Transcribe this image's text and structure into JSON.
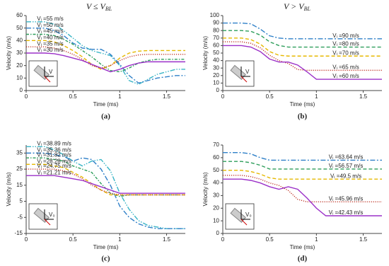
{
  "headers": [
    {
      "text": "V ≤ V",
      "sub": "BL"
    },
    {
      "text": "V > V",
      "sub": "BL"
    }
  ],
  "chart_data": [
    {
      "type": "line",
      "caption": "(a)",
      "x_label": "Time (ms)",
      "y_label": "Velocity (m/s)",
      "inset_label": "V",
      "x": [
        0,
        0.1,
        0.2,
        0.3,
        0.4,
        0.5,
        0.6,
        0.7,
        0.8,
        0.9,
        1,
        1.1,
        1.2,
        1.3,
        1.4,
        1.5,
        1.6,
        1.7
      ],
      "xlim": [
        0,
        1.7
      ],
      "xticks": [
        0,
        0.5,
        1,
        1.5
      ],
      "ylim": [
        0,
        60
      ],
      "yticks": [
        0,
        10,
        20,
        30,
        40,
        50,
        60
      ],
      "series": [
        {
          "name": "Vᵢ =55 m/s",
          "color": "#3ab5c6",
          "style": "dashdotdot",
          "values": [
            55,
            55,
            55,
            53,
            48,
            42,
            36,
            32,
            30,
            28,
            20,
            8,
            5,
            9,
            13,
            15,
            17,
            17
          ]
        },
        {
          "name": "Vᵢ =50 m/s",
          "color": "#2f80c8",
          "style": "dashdot",
          "values": [
            50,
            50,
            50,
            48,
            44,
            38,
            34,
            33,
            33,
            29,
            21,
            12,
            6,
            8,
            10,
            11,
            12,
            12
          ]
        },
        {
          "name": "Vᵢ =45 m/s",
          "color": "#2e9e5b",
          "style": "dashdot2",
          "values": [
            45,
            45,
            45,
            44,
            41,
            37,
            32,
            27,
            21,
            16,
            15,
            18,
            22,
            24,
            25,
            25,
            25,
            25
          ]
        },
        {
          "name": "Vᵢ =40 m/s",
          "color": "#e6b800",
          "style": "dashed",
          "values": [
            40,
            40,
            40,
            39,
            36,
            32,
            27,
            21,
            17,
            20,
            26,
            30,
            31.5,
            32,
            32,
            32,
            32,
            32
          ]
        },
        {
          "name": "Vᵢ =35 m/s",
          "color": "#c0392b",
          "style": "dotted",
          "values": [
            35,
            35,
            35,
            34,
            32,
            29,
            25,
            20,
            18,
            20,
            24,
            27,
            28.5,
            29,
            29,
            29,
            29,
            29
          ]
        },
        {
          "name": "Vᵢ =30 m/s",
          "color": "#9b30c8",
          "style": "solid",
          "values": [
            30,
            30,
            30,
            29.5,
            28,
            26,
            24,
            21,
            18,
            15,
            17,
            20,
            22,
            23,
            23,
            23,
            23,
            23
          ]
        }
      ]
    },
    {
      "type": "line",
      "caption": "(b)",
      "x_label": "Time (ms)",
      "y_label": "Velocity (m/s)",
      "inset_label": "V",
      "x": [
        0,
        0.1,
        0.2,
        0.3,
        0.4,
        0.5,
        0.6,
        0.7,
        0.8,
        0.9,
        1,
        1.1,
        1.2,
        1.3,
        1.4,
        1.5,
        1.6,
        1.7
      ],
      "xlim": [
        0,
        1.7
      ],
      "xticks": [
        0,
        0.5,
        1,
        1.5
      ],
      "ylim": [
        0,
        100
      ],
      "yticks": [
        0,
        10,
        20,
        30,
        40,
        50,
        60,
        70,
        80,
        90,
        100
      ],
      "series": [
        {
          "name": "Vᵢ =90 m/s",
          "color": "#2f80c8",
          "style": "dashdot",
          "values": [
            90,
            90,
            90,
            89,
            82,
            73,
            70,
            69,
            69,
            69,
            69,
            69,
            69,
            69,
            69,
            69,
            69,
            69
          ]
        },
        {
          "name": "Vᵢ =80 m/s",
          "color": "#2e9e5b",
          "style": "dashed",
          "values": [
            80,
            80,
            80,
            79,
            74,
            65,
            60,
            58,
            58,
            58,
            58,
            58,
            58,
            58,
            58,
            58,
            58,
            58
          ]
        },
        {
          "name": "Vᵢ =70 m/s",
          "color": "#e6b800",
          "style": "dashed",
          "values": [
            70,
            70,
            70,
            68,
            62,
            52,
            47,
            46,
            46,
            46,
            46,
            46,
            46,
            46,
            46,
            46,
            46,
            46
          ]
        },
        {
          "name": "Vᵢ =65 m/s",
          "color": "#c0392b",
          "style": "dotted",
          "values": [
            65,
            65,
            65,
            63,
            57,
            47,
            40,
            36,
            28,
            27,
            27,
            27,
            27,
            27,
            27,
            27,
            27,
            27
          ]
        },
        {
          "name": "Vᵢ =60 m/s",
          "color": "#9b30c8",
          "style": "solid",
          "values": [
            60,
            60,
            60,
            58,
            52,
            42,
            38,
            38,
            34,
            25,
            15,
            15,
            15,
            15,
            15,
            15,
            15,
            15
          ]
        }
      ]
    },
    {
      "type": "line",
      "caption": "(c)",
      "x_label": "Time (ms)",
      "y_label": "Velocity (m/s)",
      "inset_label": "V₀",
      "x": [
        0,
        0.1,
        0.2,
        0.3,
        0.4,
        0.5,
        0.6,
        0.7,
        0.8,
        0.9,
        1,
        1.1,
        1.2,
        1.3,
        1.4,
        1.5,
        1.6,
        1.7
      ],
      "xlim": [
        0,
        1.7
      ],
      "xticks": [
        0,
        0.5,
        1,
        1.5
      ],
      "ylim": [
        -15,
        40
      ],
      "yticks": [
        -15,
        -5,
        5,
        15,
        25,
        35
      ],
      "series": [
        {
          "name": "Vᵢ =38.89 m/s",
          "color": "#3ab5c6",
          "style": "dashdotdot",
          "values": [
            39,
            39,
            39,
            37,
            34,
            30,
            27,
            30,
            31,
            24,
            10,
            0,
            -7,
            -10,
            -11,
            -12,
            -12,
            -12
          ]
        },
        {
          "name": "Vᵢ =35.36 m/s",
          "color": "#2f80c8",
          "style": "dashdot",
          "values": [
            35,
            35,
            35,
            34,
            33,
            30,
            32,
            31,
            25,
            15,
            2,
            -5,
            -9,
            -11,
            -12,
            -12,
            -12,
            -12
          ]
        },
        {
          "name": "Vᵢ =31.82 m/s",
          "color": "#2e9e5b",
          "style": "dashdot2",
          "values": [
            32,
            32,
            32,
            31,
            30,
            27,
            25,
            23,
            16,
            10,
            8,
            9,
            9,
            9,
            9,
            9,
            9,
            9
          ]
        },
        {
          "name": "Vᵢ =28.28 m/s",
          "color": "#e6b800",
          "style": "dashed",
          "values": [
            28,
            28,
            28,
            27,
            26,
            23,
            20,
            16,
            12,
            9,
            9,
            9,
            9,
            9,
            9,
            9,
            9,
            9
          ]
        },
        {
          "name": "Vᵢ =24.75 m/s",
          "color": "#c0392b",
          "style": "dotted",
          "values": [
            25,
            25,
            25,
            25,
            24,
            22,
            19,
            15,
            12,
            10,
            9,
            9,
            9,
            9,
            9,
            9,
            9,
            9
          ]
        },
        {
          "name": "Vᵢ =21.21 m/s",
          "color": "#9b30c8",
          "style": "solid",
          "values": [
            21,
            21,
            21,
            21,
            20,
            19,
            18,
            16,
            14,
            12,
            10,
            10,
            10,
            10,
            10,
            10,
            10,
            10
          ]
        }
      ]
    },
    {
      "type": "line",
      "caption": "(d)",
      "x_label": "Time (ms)",
      "y_label": "Velocity (m/s)",
      "inset_label": "V₀",
      "x": [
        0,
        0.1,
        0.2,
        0.3,
        0.4,
        0.5,
        0.6,
        0.7,
        0.8,
        0.9,
        1,
        1.1,
        1.2,
        1.3,
        1.4,
        1.5,
        1.6,
        1.7
      ],
      "xlim": [
        0,
        1.7
      ],
      "xticks": [
        0,
        0.5,
        1,
        1.5
      ],
      "ylim": [
        0,
        70
      ],
      "yticks": [
        0,
        10,
        20,
        30,
        40,
        50,
        60,
        70
      ],
      "series": [
        {
          "name": "Vᵢ =63.64 m/s",
          "color": "#2f80c8",
          "style": "dashdot",
          "values": [
            64,
            64,
            64,
            63,
            60,
            58,
            58,
            58,
            58,
            58,
            58,
            58,
            58,
            58,
            58,
            58,
            58,
            58
          ]
        },
        {
          "name": "Vᵢ =56.57 m/s",
          "color": "#2e9e5b",
          "style": "dashed",
          "values": [
            57,
            57,
            57,
            56,
            54,
            51,
            51,
            51,
            51,
            51,
            51,
            51,
            51,
            51,
            51,
            51,
            51,
            51
          ]
        },
        {
          "name": "Vᵢ =49.5 m/s",
          "color": "#e6b800",
          "style": "dashed",
          "values": [
            50,
            50,
            50,
            49,
            47,
            44,
            43,
            43,
            43,
            43,
            43,
            43,
            43,
            43,
            43,
            43,
            43,
            43
          ]
        },
        {
          "name": "Vᵢ =45.96 m/s",
          "color": "#c0392b",
          "style": "dotted",
          "values": [
            46,
            46,
            46,
            45,
            43,
            40,
            38,
            34,
            27,
            25,
            25,
            25,
            25,
            25,
            25,
            25,
            25,
            25
          ]
        },
        {
          "name": "Vᵢ =42.43 m/s",
          "color": "#9b30c8",
          "style": "solid",
          "values": [
            43,
            43,
            43,
            42,
            40,
            37,
            35,
            37,
            35,
            28,
            20,
            14,
            14,
            14,
            14,
            14,
            14,
            14
          ]
        }
      ]
    }
  ]
}
